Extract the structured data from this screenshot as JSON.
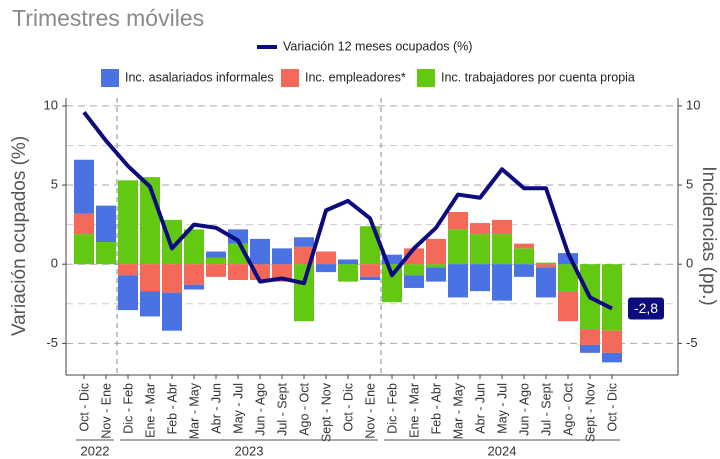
{
  "chart_data": {
    "type": "bar",
    "subtitle": "Trimestres móviles",
    "y_label": "Variación ocupados (%)",
    "y2_label": "Incidencias (pp.)",
    "categories": [
      "Oct - Dic",
      "Nov - Ene",
      "Dic - Feb",
      "Ene - Mar",
      "Feb - Abr",
      "Mar - May",
      "Abr - Jun",
      "May - Jul",
      "Jun - Ago",
      "Jul - Sept",
      "Ago - Oct",
      "Sept - Nov",
      "Oct - Dic",
      "Nov - Ene",
      "Dic - Feb",
      "Ene - Mar",
      "Feb - Abr",
      "Mar - May",
      "Abr - Jun",
      "May - Jul",
      "Jun - Ago",
      "Jul - Sept",
      "Ago - Oct",
      "Sept - Nov",
      "Oct - Dic"
    ],
    "years": [
      "2022",
      "2022",
      "2023",
      "2023",
      "2023",
      "2023",
      "2023",
      "2023",
      "2023",
      "2023",
      "2023",
      "2023",
      "2023",
      "2023",
      "2024",
      "2024",
      "2024",
      "2024",
      "2024",
      "2024",
      "2024",
      "2024",
      "2024",
      "2024",
      "2024"
    ],
    "series": [
      {
        "name": "Inc. asalariados informales",
        "color": "#4a72e2",
        "axis": "y2",
        "values": [
          3.4,
          2.3,
          -2.2,
          -1.6,
          -2.4,
          -0.3,
          0.4,
          0.9,
          1.6,
          1.0,
          0.6,
          -0.5,
          0.3,
          -0.2,
          0.6,
          -0.8,
          -0.9,
          -2.1,
          -1.7,
          -2.3,
          -0.8,
          -1.9,
          0.7,
          -0.5,
          -0.6
        ]
      },
      {
        "name": "Inc. empleadores*",
        "color": "#f4695a",
        "axis": "y2",
        "values": [
          1.3,
          0,
          -0.7,
          -1.7,
          -1.8,
          -1.3,
          -0.8,
          -1.0,
          -1.0,
          -1.1,
          1.1,
          0.8,
          0,
          -0.8,
          0,
          1.0,
          1.6,
          1.1,
          0.7,
          0.9,
          0.3,
          -0.2,
          -1.9,
          -1.0,
          -1.4
        ]
      },
      {
        "name": "Inc. trabajadores por cuenta propia",
        "color": "#62c812",
        "axis": "y2",
        "values": [
          1.9,
          1.4,
          5.3,
          5.5,
          2.8,
          2.2,
          0.4,
          1.3,
          0,
          0,
          -3.6,
          0,
          -1.1,
          2.4,
          -2.4,
          -0.7,
          -0.2,
          2.2,
          1.9,
          1.9,
          1.0,
          0.1,
          -1.7,
          -4.1,
          -4.2
        ]
      }
    ],
    "line": {
      "name": "Variación 12 meses ocupados (%)",
      "color": "#0c0c7e",
      "type": "line",
      "values": [
        9.6,
        7.8,
        6.2,
        4.9,
        1.0,
        2.5,
        2.3,
        1.5,
        -1.1,
        -0.9,
        -1.2,
        3.4,
        4.0,
        2.9,
        -0.7,
        1.0,
        2.3,
        4.4,
        4.2,
        6.0,
        4.8,
        4.8,
        0.7,
        -2.1,
        -2.8
      ],
      "value_labels": [
        null,
        null,
        null,
        null,
        null,
        null,
        null,
        null,
        null,
        null,
        null,
        null,
        null,
        null,
        null,
        null,
        null,
        null,
        null,
        null,
        null,
        null,
        null,
        null,
        "-2,8"
      ]
    },
    "ylim": [
      -7,
      10.5
    ],
    "yticks": [
      -5,
      0,
      5,
      10
    ],
    "y2lim": [
      -7,
      10.5
    ],
    "y2ticks": [
      -5,
      0,
      5,
      10
    ],
    "minor_yticks": [
      -2.5,
      2.5,
      7.5
    ],
    "grid": true
  }
}
